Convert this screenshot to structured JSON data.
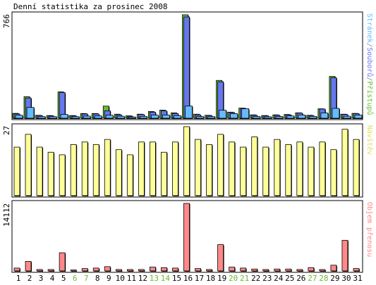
{
  "chart_data": {
    "type": "bar",
    "title": "Denní statistika za prosinec 2008",
    "categories": [
      "1",
      "2",
      "3",
      "4",
      "5",
      "6",
      "7",
      "8",
      "9",
      "10",
      "11",
      "12",
      "13",
      "14",
      "15",
      "16",
      "17",
      "18",
      "19",
      "20",
      "21",
      "22",
      "23",
      "24",
      "25",
      "26",
      "27",
      "28",
      "29",
      "30",
      "31"
    ],
    "weekend_days": [
      "6",
      "7",
      "13",
      "14",
      "20",
      "21",
      "27",
      "28"
    ],
    "panels": [
      {
        "name": "traffic",
        "ymax_label": "766",
        "ymax": 766,
        "grid": false,
        "legend": {
          "position": "right-vertical",
          "parts": [
            {
              "text": "Stránek",
              "color": "#66BBFF"
            },
            {
              "text": "/",
              "color": "#888888"
            },
            {
              "text": "Souborů",
              "color": "#6677EE"
            },
            {
              "text": "/",
              "color": "#888888"
            },
            {
              "text": "Přístupů",
              "color": "#66BB33"
            }
          ]
        },
        "series": [
          {
            "name": "Přístupů",
            "color": "#66BB33",
            "values": [
              36,
              160,
              22,
              20,
              195,
              20,
              35,
              35,
              90,
              30,
              18,
              30,
              50,
              60,
              40,
              766,
              30,
              22,
              280,
              45,
              75,
              25,
              20,
              25,
              28,
              40,
              22,
              70,
              310,
              30,
              36
            ]
          },
          {
            "name": "Souborů",
            "color": "#6677EE",
            "values": [
              32,
              150,
              20,
              18,
              190,
              18,
              32,
              32,
              55,
              25,
              15,
              28,
              45,
              55,
              35,
              750,
              25,
              20,
              270,
              42,
              73,
              22,
              18,
              22,
              25,
              38,
              20,
              68,
              300,
              28,
              34
            ]
          },
          {
            "name": "Stránek",
            "color": "#66BBFF",
            "values": [
              22,
              80,
              12,
              12,
              28,
              12,
              16,
              17,
              22,
              15,
              9,
              14,
              23,
              24,
              19,
              90,
              13,
              12,
              59,
              34,
              70,
              13,
              11,
              13,
              17,
              24,
              14,
              39,
              73,
              15,
              23
            ]
          }
        ]
      },
      {
        "name": "visits",
        "ymax_label": "27",
        "ymax": 27,
        "grid": false,
        "legend": {
          "position": "right-vertical",
          "parts": [
            {
              "text": "Návštěv",
              "color": "#DDDD66"
            }
          ]
        },
        "series": [
          {
            "name": "Návštěv",
            "color": "#FFFF99",
            "values": [
              19,
              24,
              19,
              17,
              16,
              20,
              21,
              20,
              22,
              18,
              16,
              21,
              21,
              17,
              21,
              27,
              22,
              20,
              24,
              21,
              19,
              23,
              19,
              22,
              20,
              21,
              19,
              21,
              18,
              26,
              22
            ]
          }
        ]
      },
      {
        "name": "transfer",
        "ymax_label": "14112",
        "ymax": 14112,
        "grid": false,
        "legend": {
          "position": "right-vertical",
          "parts": [
            {
              "text": "Objem přenosu",
              "color": "#FF8888"
            }
          ]
        },
        "series": [
          {
            "name": "Objem přenosu",
            "color": "#FF8888",
            "values": [
              600,
              2000,
              300,
              300,
              3800,
              200,
              500,
              600,
              900,
              300,
              300,
              300,
              800,
              700,
              600,
              14112,
              500,
              300,
              5500,
              800,
              600,
              400,
              300,
              400,
              400,
              300,
              700,
              300,
              1200,
              6400,
              500
            ]
          }
        ]
      }
    ]
  },
  "colors": {
    "weekday_label": "#000000",
    "weekend_label": "#66BB33",
    "frame": "#000000",
    "shadow": "#000000"
  }
}
